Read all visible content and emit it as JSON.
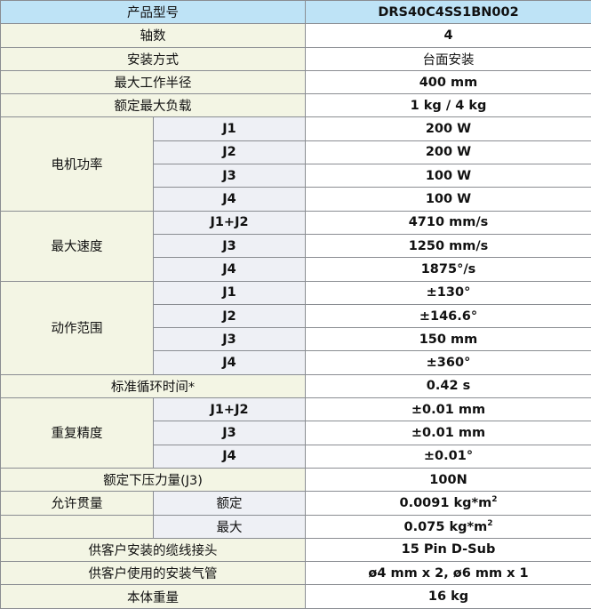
{
  "colors": {
    "header_bg": "#bee3f6",
    "label_bg": "#f3f5e4",
    "sublabel_bg": "#eef0f5",
    "value_bg": "#ffffff",
    "border": "#8a8d92"
  },
  "header": {
    "label": "产品型号",
    "value": "DRS40C4SS1BN002"
  },
  "rows": {
    "axes": {
      "label": "轴数",
      "value": "4"
    },
    "mount": {
      "label": "安装方式",
      "value": "台面安装"
    },
    "reach": {
      "label": "最大工作半径",
      "value": "400 mm"
    },
    "payload": {
      "label": "额定最大负载",
      "value": "1 kg / 4 kg"
    },
    "motor": {
      "label": "电机功率",
      "items": [
        {
          "axis": "J1",
          "value": "200 W"
        },
        {
          "axis": "J2",
          "value": "200 W"
        },
        {
          "axis": "J3",
          "value": "100 W"
        },
        {
          "axis": "J4",
          "value": "100 W"
        }
      ]
    },
    "speed": {
      "label": "最大速度",
      "items": [
        {
          "axis": "J1+J2",
          "value": "4710 mm/s"
        },
        {
          "axis": "J3",
          "value": "1250 mm/s"
        },
        {
          "axis": "J4",
          "value": "1875°/s"
        }
      ]
    },
    "range": {
      "label": "动作范围",
      "items": [
        {
          "axis": "J1",
          "value": "±130°"
        },
        {
          "axis": "J2",
          "value": "±146.6°"
        },
        {
          "axis": "J3",
          "value": "150 mm"
        },
        {
          "axis": "J4",
          "value": "±360°"
        }
      ]
    },
    "cycle": {
      "label": "标准循环时间*",
      "value": "0.42 s"
    },
    "repeat": {
      "label": "重复精度",
      "items": [
        {
          "axis": "J1+J2",
          "value": "±0.01 mm"
        },
        {
          "axis": "J3",
          "value": "±0.01 mm"
        },
        {
          "axis": "J4",
          "value": "±0.01°"
        }
      ]
    },
    "press": {
      "label": "额定下压力量(J3)",
      "value": "100N"
    },
    "inertia": {
      "label": "允许贯量",
      "items": [
        {
          "axis": "额定",
          "value": "0.0091 kg*m",
          "sup": "2"
        },
        {
          "axis": "最大",
          "value": "0.075 kg*m",
          "sup": "2"
        }
      ]
    },
    "cable": {
      "label": "供客户安装的缆线接头",
      "value": "15 Pin D-Sub"
    },
    "air": {
      "label": "供客户使用的安装气管",
      "value": "ø4 mm x 2, ø6 mm x 1"
    },
    "weight": {
      "label": "本体重量",
      "value": "16 kg"
    }
  }
}
